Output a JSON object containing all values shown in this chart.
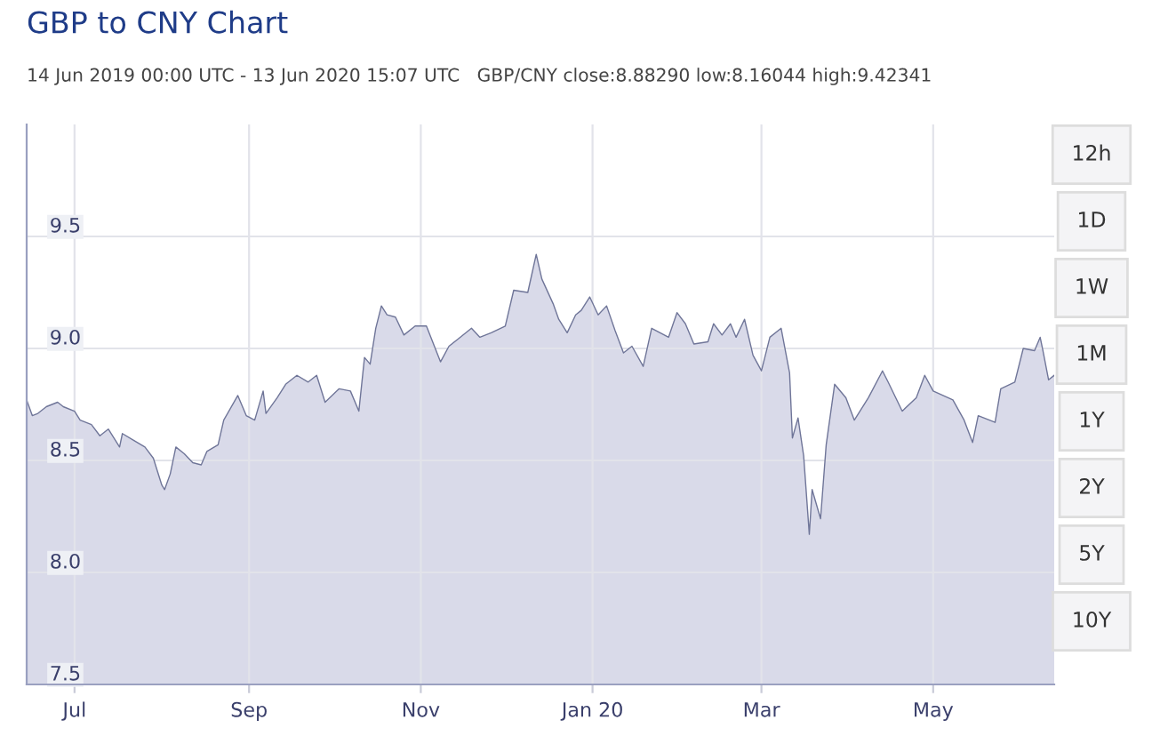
{
  "chart_data": {
    "type": "area",
    "title": "GBP to CNY Chart",
    "subtitle": "14 Jun 2019 00:00 UTC - 13 Jun 2020 15:07 UTC   GBP/CNY close:8.88290 low:8.16044 high:9.42341",
    "x": [
      "2019-06-14",
      "2019-06-16",
      "2019-06-18",
      "2019-06-21",
      "2019-06-25",
      "2019-06-27",
      "2019-07-01",
      "2019-07-03",
      "2019-07-07",
      "2019-07-10",
      "2019-07-13",
      "2019-07-17",
      "2019-07-18",
      "2019-07-22",
      "2019-07-26",
      "2019-07-29",
      "2019-08-01",
      "2019-08-02",
      "2019-08-04",
      "2019-08-06",
      "2019-08-09",
      "2019-08-12",
      "2019-08-15",
      "2019-08-17",
      "2019-08-21",
      "2019-08-23",
      "2019-08-28",
      "2019-08-31",
      "2019-09-03",
      "2019-09-06",
      "2019-09-07",
      "2019-09-11",
      "2019-09-14",
      "2019-09-18",
      "2019-09-22",
      "2019-09-25",
      "2019-09-28",
      "2019-10-03",
      "2019-10-07",
      "2019-10-10",
      "2019-10-12",
      "2019-10-14",
      "2019-10-16",
      "2019-10-18",
      "2019-10-20",
      "2019-10-23",
      "2019-10-26",
      "2019-10-30",
      "2019-11-03",
      "2019-11-08",
      "2019-11-11",
      "2019-11-14",
      "2019-11-19",
      "2019-11-22",
      "2019-11-26",
      "2019-12-01",
      "2019-12-04",
      "2019-12-09",
      "2019-12-12",
      "2019-12-14",
      "2019-12-18",
      "2019-12-20",
      "2019-12-23",
      "2019-12-26",
      "2019-12-28",
      "2019-12-31",
      "2020-01-03",
      "2020-01-06",
      "2020-01-09",
      "2020-01-12",
      "2020-01-15",
      "2020-01-19",
      "2020-01-22",
      "2020-01-28",
      "2020-01-31",
      "2020-02-03",
      "2020-02-06",
      "2020-02-11",
      "2020-02-13",
      "2020-02-16",
      "2020-02-19",
      "2020-02-21",
      "2020-02-24",
      "2020-02-27",
      "2020-03-01",
      "2020-03-04",
      "2020-03-08",
      "2020-03-11",
      "2020-03-12",
      "2020-03-14",
      "2020-03-16",
      "2020-03-18",
      "2020-03-19",
      "2020-03-22",
      "2020-03-24",
      "2020-03-27",
      "2020-03-31",
      "2020-04-03",
      "2020-04-08",
      "2020-04-13",
      "2020-04-15",
      "2020-04-20",
      "2020-04-25",
      "2020-04-28",
      "2020-05-01",
      "2020-05-08",
      "2020-05-12",
      "2020-05-15",
      "2020-05-17",
      "2020-05-23",
      "2020-05-25",
      "2020-05-30",
      "2020-06-02",
      "2020-06-06",
      "2020-06-08",
      "2020-06-09",
      "2020-06-11",
      "2020-06-13"
    ],
    "series": [
      {
        "color": "#6f7598",
        "values": [
          8.77,
          8.7,
          8.71,
          8.74,
          8.76,
          8.74,
          8.72,
          8.68,
          8.66,
          8.61,
          8.64,
          8.56,
          8.62,
          8.59,
          8.56,
          8.51,
          8.39,
          8.37,
          8.44,
          8.56,
          8.53,
          8.49,
          8.48,
          8.54,
          8.57,
          8.68,
          8.79,
          8.7,
          8.68,
          8.81,
          8.71,
          8.78,
          8.84,
          8.88,
          8.85,
          8.88,
          8.76,
          8.82,
          8.81,
          8.72,
          8.96,
          8.93,
          9.09,
          9.19,
          9.15,
          9.14,
          9.06,
          9.1,
          9.1,
          8.94,
          9.01,
          9.04,
          9.09,
          9.05,
          9.07,
          9.1,
          9.26,
          9.25,
          9.42,
          9.31,
          9.2,
          9.13,
          9.07,
          9.15,
          9.17,
          9.23,
          9.15,
          9.19,
          9.08,
          8.98,
          9.01,
          8.92,
          9.09,
          9.05,
          9.16,
          9.11,
          9.02,
          9.03,
          9.11,
          9.06,
          9.11,
          9.05,
          9.13,
          8.97,
          8.9,
          9.05,
          9.09,
          8.89,
          8.6,
          8.69,
          8.52,
          8.17,
          8.37,
          8.24,
          8.57,
          8.84,
          8.78,
          8.68,
          8.78,
          8.9,
          8.85,
          8.72,
          8.78,
          8.88,
          8.81,
          8.77,
          8.68,
          8.58,
          8.7,
          8.67,
          8.82,
          8.85,
          9.0,
          8.99,
          9.05,
          8.99,
          8.86,
          8.88
        ]
      }
    ],
    "xlim": [
      "2019-06-14",
      "2020-06-13"
    ],
    "xticks": [
      {
        "value": "2019-07-01",
        "label": "Jul"
      },
      {
        "value": "2019-09-01",
        "label": "Sep"
      },
      {
        "value": "2019-11-01",
        "label": "Nov"
      },
      {
        "value": "2020-01-01",
        "label": "Jan 20"
      },
      {
        "value": "2020-03-01",
        "label": "Mar"
      },
      {
        "value": "2020-05-01",
        "label": "May"
      }
    ],
    "ylim": [
      7.5,
      10.0
    ],
    "yticks": [
      {
        "value": 7.5,
        "label": "7.5"
      },
      {
        "value": 8.0,
        "label": "8.0"
      },
      {
        "value": 8.5,
        "label": "8.5"
      },
      {
        "value": 9.0,
        "label": "9.0"
      },
      {
        "value": 9.5,
        "label": "9.5"
      }
    ],
    "grid": true,
    "annotations": [
      "12h",
      "1D",
      "1W",
      "1M",
      "1Y",
      "2Y",
      "5Y",
      "10Y"
    ]
  }
}
